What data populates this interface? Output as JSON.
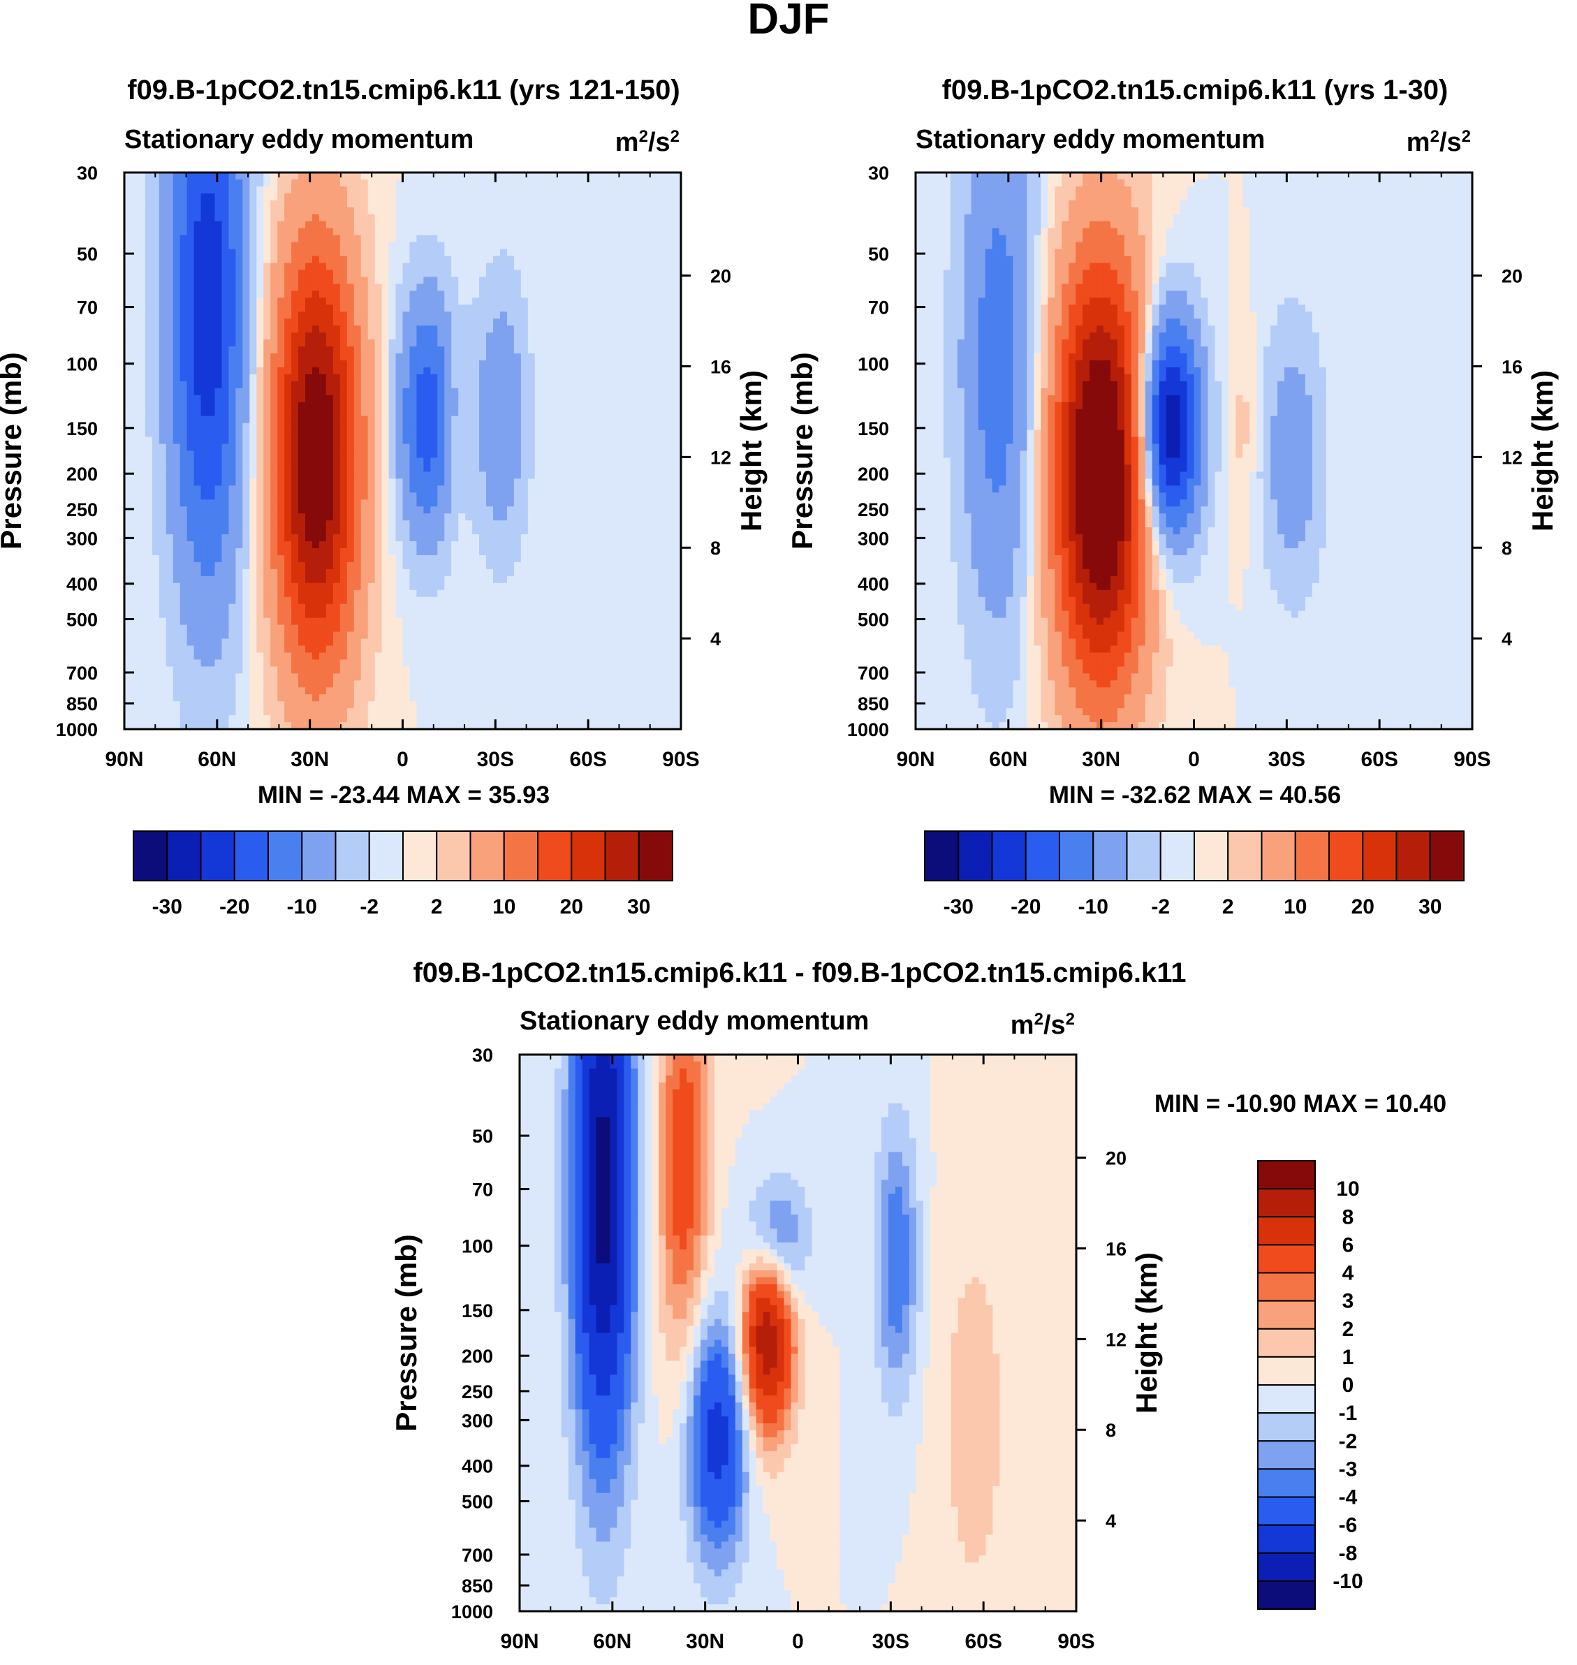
{
  "figure": {
    "title": "DJF"
  },
  "colors": {
    "full": [
      "#0c0c7a",
      "#0c1fb4",
      "#1438d8",
      "#2a5cf0",
      "#4a7ff0",
      "#7fa2f0",
      "#b4ccf8",
      "#dbe8fb",
      "#fde8d8",
      "#fbc8ae",
      "#f8a17a",
      "#f57446",
      "#f04b1c",
      "#d8320a",
      "#b51f0a",
      "#860a0a"
    ],
    "diff": [
      "#0c0c7a",
      "#0c1fb4",
      "#1438d8",
      "#2a5cf0",
      "#4a7ff0",
      "#7fa2f0",
      "#b4ccf8",
      "#dbe8fb",
      "#fde8d8",
      "#fbc8ae",
      "#f8a17a",
      "#f57446",
      "#f04b1c",
      "#d8320a",
      "#b51f0a",
      "#860a0a"
    ]
  },
  "chart_data": [
    {
      "id": "panel1",
      "type": "heatmap",
      "title": "f09.B-1pCO2.tn15.cmip6.k11 (yrs 121-150)",
      "subtitle": "Stationary eddy momentum",
      "units": {
        "base": "m",
        "sup1": "2",
        "mid": "/s",
        "sup2": "2"
      },
      "ylabel": "Pressure (mb)",
      "ylabel_right": "Height (km)",
      "x_ticks": [
        "90N",
        "60N",
        "30N",
        "0",
        "30S",
        "60S",
        "90S"
      ],
      "xlim": [
        90,
        -90
      ],
      "y_ticks": [
        30,
        50,
        70,
        100,
        150,
        200,
        250,
        300,
        400,
        500,
        700,
        850,
        1000
      ],
      "ylim": [
        1000,
        30
      ],
      "height_ticks": [
        4,
        8,
        12,
        16,
        20
      ],
      "stats_text": "MIN = -23.44  MAX =  35.93",
      "min": -23.44,
      "max": 35.93,
      "colorbar": {
        "levels": [
          -35,
          -30,
          -25,
          -20,
          -15,
          -10,
          -5,
          -2,
          0,
          2,
          5,
          10,
          15,
          20,
          25,
          30
        ],
        "labels": [
          "-30",
          "-20",
          "-10",
          "-2",
          "2",
          "10",
          "20",
          "30"
        ]
      },
      "features": [
        {
          "lat": 63,
          "p": 70,
          "amp": -23.44,
          "sx": 9,
          "sy": 1.3
        },
        {
          "lat": 28,
          "p": 180,
          "amp": 35.93,
          "sx": 10,
          "sy": 0.95
        },
        {
          "lat": -8,
          "p": 140,
          "amp": -18,
          "sx": 7,
          "sy": 0.55
        },
        {
          "lat": -32,
          "p": 140,
          "amp": -9,
          "sx": 6,
          "sy": 0.6
        },
        {
          "lat": -17,
          "p": 150,
          "amp": 3.5,
          "sx": 3,
          "sy": 0.45
        }
      ]
    },
    {
      "id": "panel2",
      "type": "heatmap",
      "title": "f09.B-1pCO2.tn15.cmip6.k11 (yrs 1-30)",
      "subtitle": "Stationary eddy momentum",
      "units": {
        "base": "m",
        "sup1": "2",
        "mid": "/s",
        "sup2": "2"
      },
      "ylabel": "Pressure (mb)",
      "ylabel_right": "Height (km)",
      "x_ticks": [
        "90N",
        "60N",
        "30N",
        "0",
        "30S",
        "60S",
        "90S"
      ],
      "xlim": [
        90,
        -90
      ],
      "y_ticks": [
        30,
        50,
        70,
        100,
        150,
        200,
        250,
        300,
        400,
        500,
        700,
        850,
        1000
      ],
      "ylim": [
        1000,
        30
      ],
      "height_ticks": [
        4,
        8,
        12,
        16,
        20
      ],
      "stats_text": "MIN = -32.62  MAX =  40.56",
      "min": -32.62,
      "max": 40.56,
      "colorbar": {
        "levels": [
          -35,
          -30,
          -25,
          -20,
          -15,
          -10,
          -5,
          -2,
          0,
          2,
          5,
          10,
          15,
          20,
          25,
          30
        ],
        "labels": [
          "-30",
          "-20",
          "-10",
          "-2",
          "2",
          "10",
          "20",
          "30"
        ]
      },
      "features": [
        {
          "lat": 63,
          "p": 100,
          "amp": -13,
          "sx": 9,
          "sy": 1.2
        },
        {
          "lat": 30,
          "p": 200,
          "amp": 40.56,
          "sx": 11,
          "sy": 0.95
        },
        {
          "lat": 8,
          "p": 150,
          "amp": -32.62,
          "sx": 7,
          "sy": 0.5
        },
        {
          "lat": -32,
          "p": 180,
          "amp": -8,
          "sx": 7,
          "sy": 0.6
        },
        {
          "lat": -16,
          "p": 150,
          "amp": 3,
          "sx": 3,
          "sy": 0.45
        }
      ]
    },
    {
      "id": "panel3",
      "type": "heatmap",
      "title": "f09.B-1pCO2.tn15.cmip6.k11 - f09.B-1pCO2.tn15.cmip6.k11",
      "subtitle": "Stationary eddy momentum",
      "units": {
        "base": "m",
        "sup1": "2",
        "mid": "/s",
        "sup2": "2"
      },
      "ylabel": "Pressure (mb)",
      "ylabel_right": "Height (km)",
      "x_ticks": [
        "90N",
        "60N",
        "30N",
        "0",
        "30S",
        "60S",
        "90S"
      ],
      "xlim": [
        90,
        -90
      ],
      "y_ticks": [
        30,
        50,
        70,
        100,
        150,
        200,
        250,
        300,
        400,
        500,
        700,
        850,
        1000
      ],
      "ylim": [
        1000,
        30
      ],
      "height_ticks": [
        4,
        8,
        12,
        16,
        20
      ],
      "stats_text": "MIN = -10.90  MAX =  10.40",
      "min": -10.9,
      "max": 10.4,
      "colorbar": {
        "levels": [
          -12,
          -10,
          -8,
          -6,
          -4,
          -3,
          -2,
          -1,
          0,
          1,
          2,
          3,
          4,
          6,
          8,
          10
        ],
        "labels": [
          "10",
          "8",
          "6",
          "4",
          "3",
          "2",
          "1",
          "0",
          "-1",
          "-2",
          "-3",
          "-4",
          "-6",
          "-8",
          "-10"
        ]
      },
      "features": [
        {
          "lat": 63,
          "p": 70,
          "amp": -10.9,
          "sx": 7,
          "sy": 1.2
        },
        {
          "lat": 37,
          "p": 60,
          "amp": 5,
          "sx": 6,
          "sy": 0.9
        },
        {
          "lat": 26,
          "p": 330,
          "amp": -7,
          "sx": 7,
          "sy": 0.55
        },
        {
          "lat": 10,
          "p": 170,
          "amp": 10.4,
          "sx": 6,
          "sy": 0.45
        },
        {
          "lat": 8,
          "p": 100,
          "amp": -6,
          "sx": 7,
          "sy": 0.3
        },
        {
          "lat": -32,
          "p": 110,
          "amp": -4,
          "sx": 5,
          "sy": 0.6
        },
        {
          "lat": -57,
          "p": 300,
          "amp": 1.5,
          "sx": 9,
          "sy": 1.0
        }
      ]
    }
  ]
}
